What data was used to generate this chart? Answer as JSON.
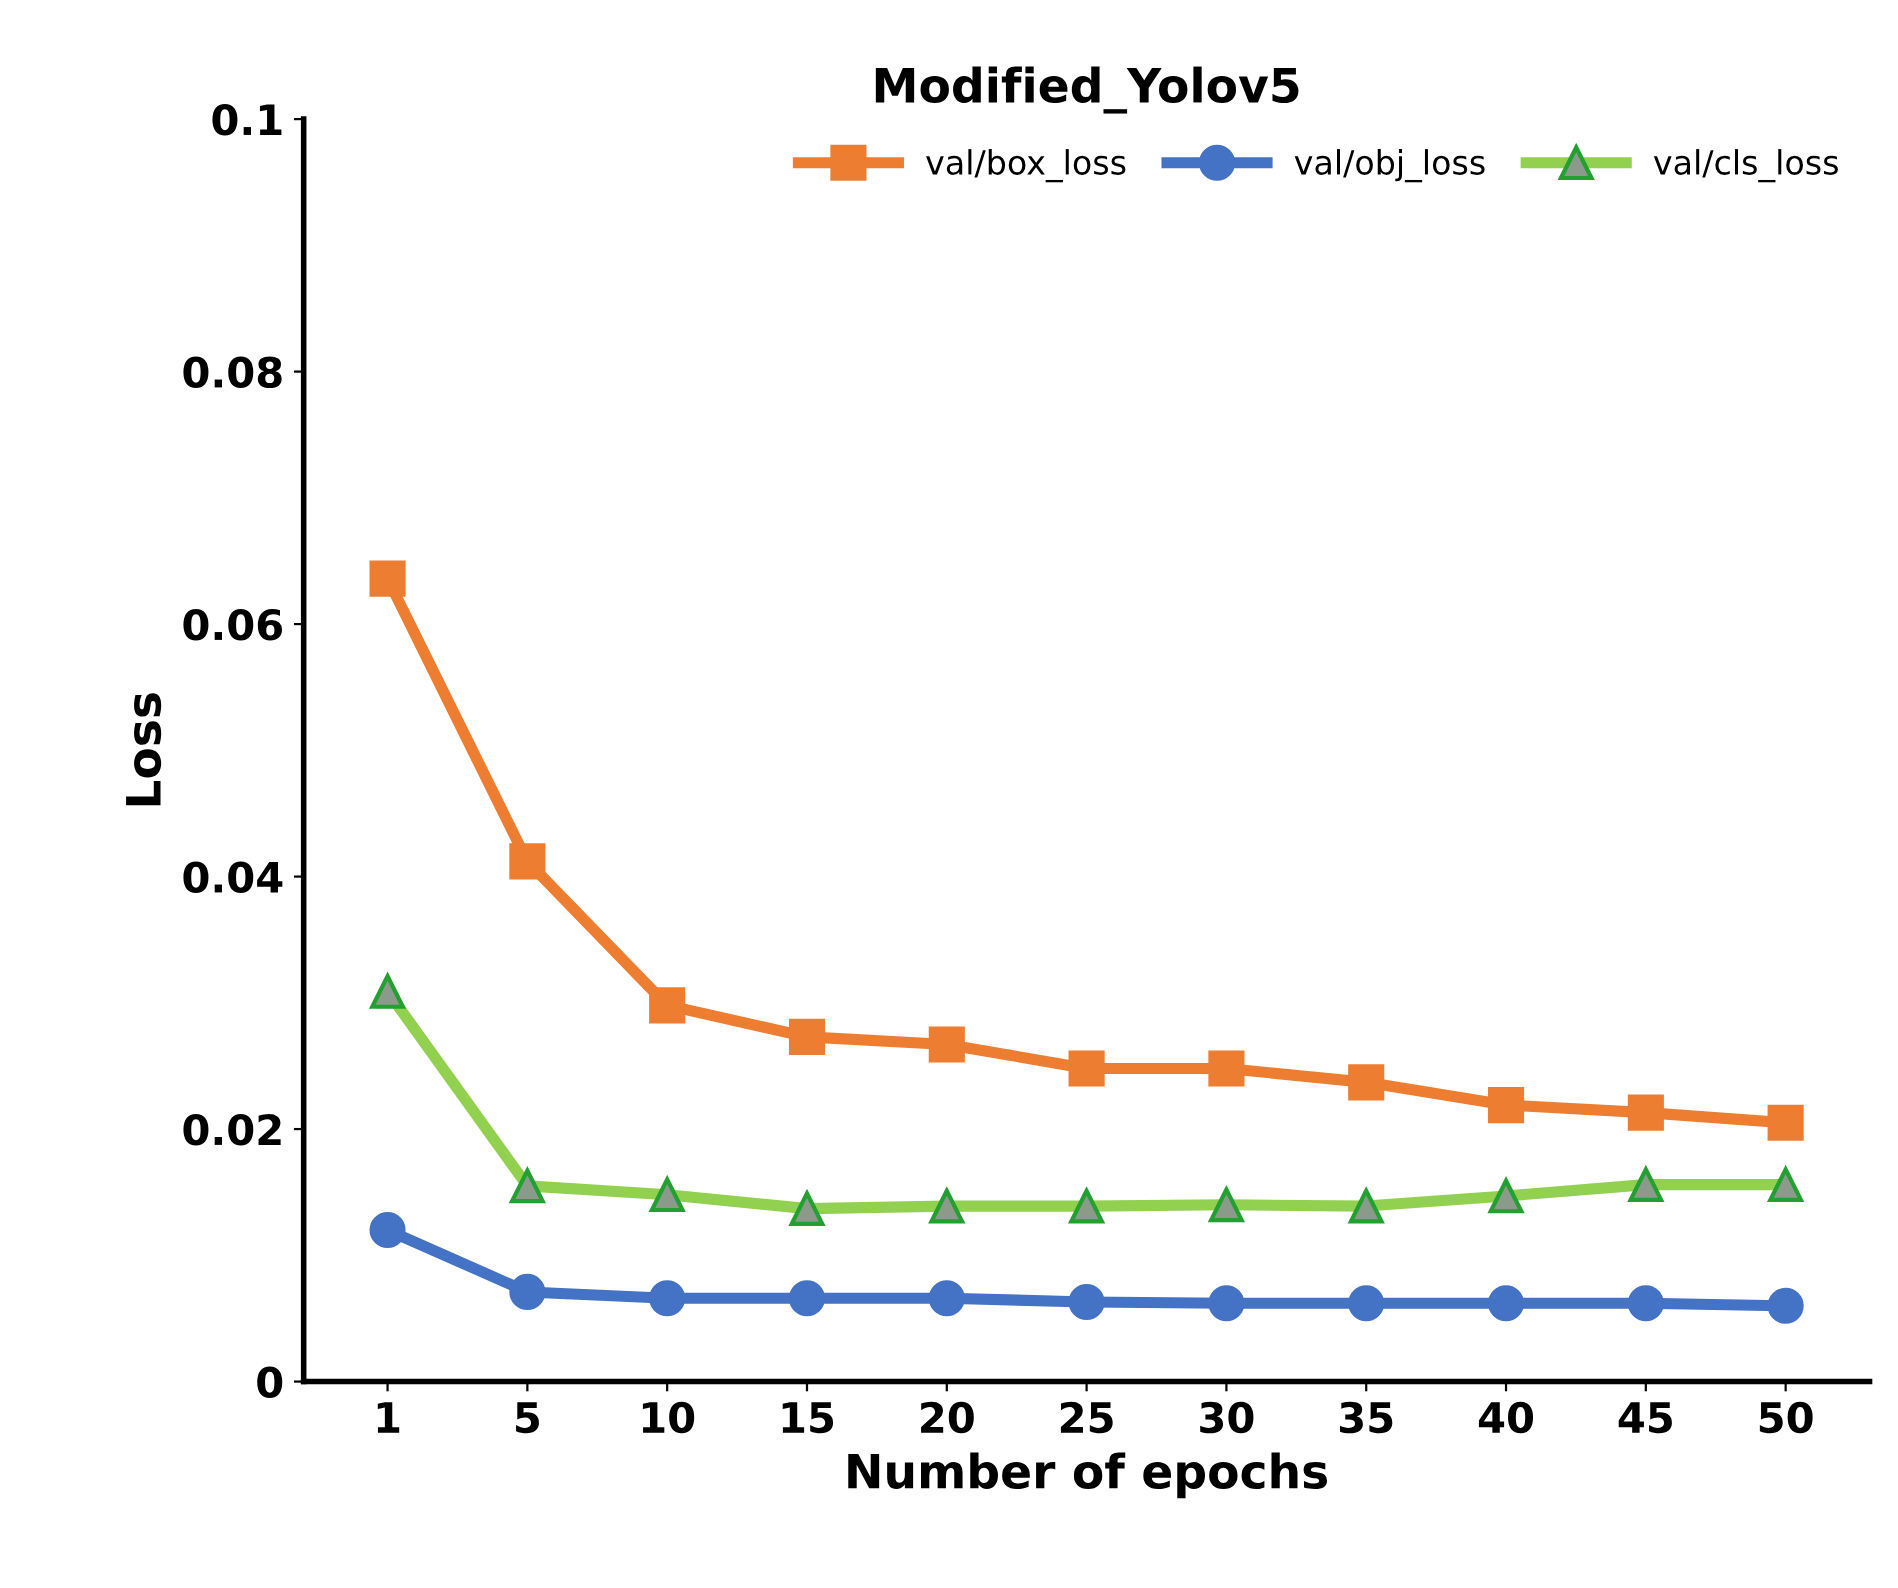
{
  "chart_data": {
    "type": "line",
    "title": "Modified_Yolov5",
    "xlabel": "Number of epochs",
    "ylabel": "Loss",
    "categories": [
      "1",
      "5",
      "10",
      "15",
      "20",
      "25",
      "30",
      "35",
      "40",
      "45",
      "50"
    ],
    "series": [
      {
        "name": "val/box_loss",
        "color": "#ed7d31",
        "marker": "square",
        "values": [
          0.0636,
          0.0412,
          0.0298,
          0.0273,
          0.0267,
          0.0248,
          0.0248,
          0.0237,
          0.0219,
          0.0213,
          0.0205
        ]
      },
      {
        "name": "val/obj_loss",
        "color": "#4472c4",
        "marker": "circle",
        "values": [
          0.012,
          0.0071,
          0.0066,
          0.0066,
          0.0066,
          0.0063,
          0.0062,
          0.0062,
          0.0062,
          0.0062,
          0.006
        ]
      },
      {
        "name": "val/cls_loss",
        "color": "#92d050",
        "marker": "triangle",
        "values": [
          0.0309,
          0.0155,
          0.0148,
          0.0137,
          0.0139,
          0.0139,
          0.014,
          0.0139,
          0.0147,
          0.0156,
          0.0156
        ]
      }
    ],
    "ylim": [
      0,
      0.1
    ],
    "yticks": [
      {
        "value": 0,
        "label": "0"
      },
      0.02,
      0.04,
      0.06,
      0.08,
      0.1
    ],
    "grid": false,
    "legend": "top right",
    "line_style": "solid"
  }
}
